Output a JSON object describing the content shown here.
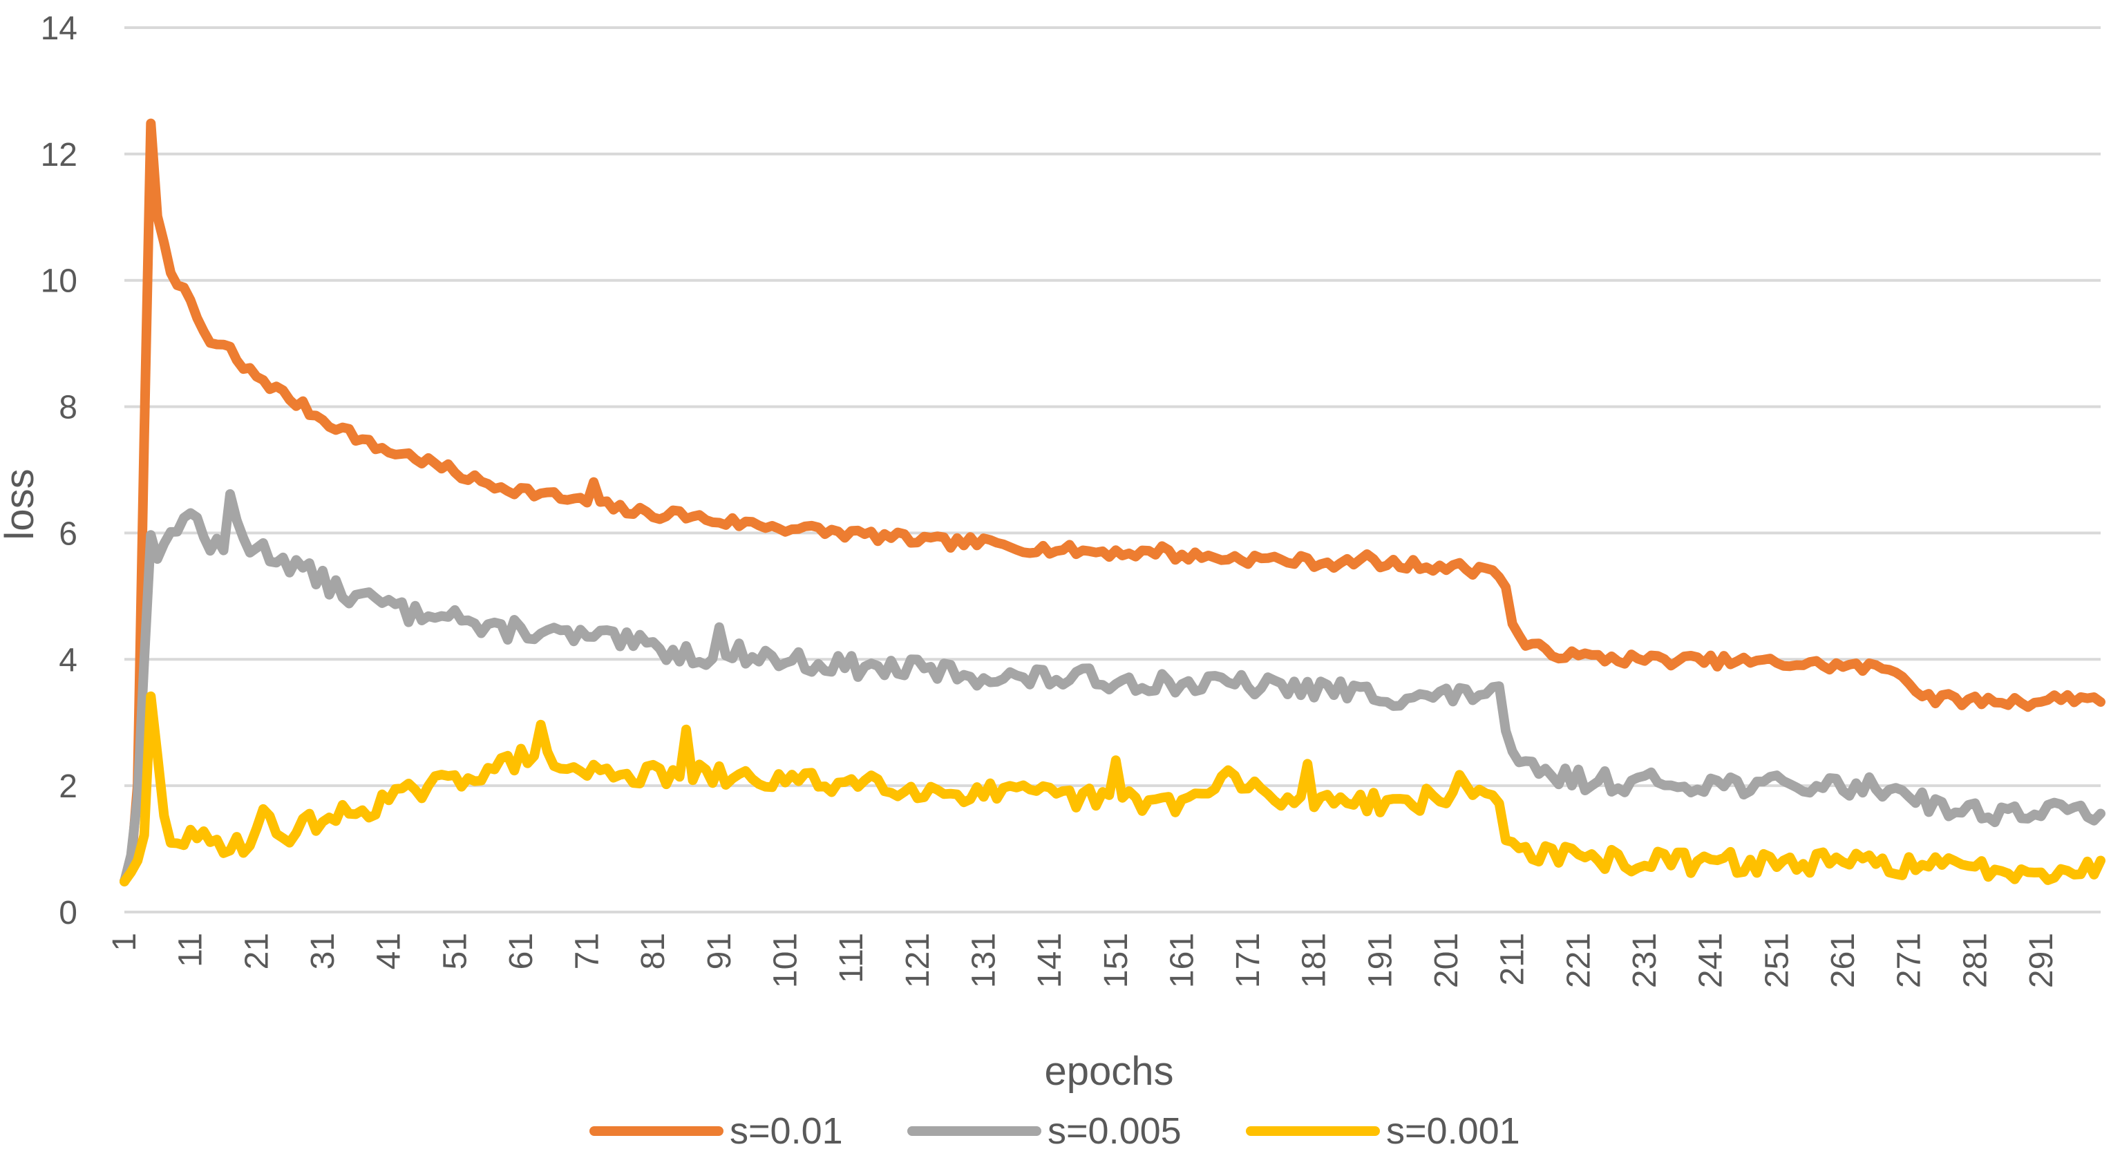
{
  "chart_data": {
    "type": "line",
    "title": "",
    "xlabel": "epochs",
    "ylabel": "loss",
    "ylim": [
      0,
      14
    ],
    "yticks": [
      "0",
      "2",
      "4",
      "6",
      "8",
      "10",
      "12",
      "14"
    ],
    "xticks": [
      "1",
      "11",
      "21",
      "31",
      "41",
      "51",
      "61",
      "71",
      "81",
      "91",
      "101",
      "111",
      "121",
      "131",
      "141",
      "151",
      "161",
      "171",
      "181",
      "191",
      "201",
      "211",
      "221",
      "231",
      "241",
      "251",
      "261",
      "271",
      "281",
      "291"
    ],
    "xlim": [
      1,
      300
    ],
    "grid": true,
    "legend_position": "bottom",
    "series": [
      {
        "name": "s=0.01",
        "color": "#ED7D31",
        "anchors": [
          [
            1,
            0.5
          ],
          [
            2,
            0.7
          ],
          [
            3,
            2.0
          ],
          [
            4,
            7.5
          ],
          [
            5,
            12.5
          ],
          [
            6,
            11.0
          ],
          [
            7,
            10.6
          ],
          [
            8,
            10.2
          ],
          [
            10,
            9.8
          ],
          [
            12,
            9.4
          ],
          [
            14,
            9.0
          ],
          [
            17,
            8.9
          ],
          [
            19,
            8.6
          ],
          [
            21,
            8.5
          ],
          [
            25,
            8.2
          ],
          [
            28,
            8.0
          ],
          [
            31,
            7.8
          ],
          [
            35,
            7.6
          ],
          [
            38,
            7.4
          ],
          [
            41,
            7.3
          ],
          [
            45,
            7.2
          ],
          [
            50,
            7.0
          ],
          [
            55,
            6.8
          ],
          [
            60,
            6.7
          ],
          [
            65,
            6.6
          ],
          [
            70,
            6.5
          ],
          [
            75,
            6.4
          ],
          [
            80,
            6.3
          ],
          [
            85,
            6.3
          ],
          [
            90,
            6.2
          ],
          [
            95,
            6.15
          ],
          [
            100,
            6.1
          ],
          [
            105,
            6.05
          ],
          [
            110,
            6.0
          ],
          [
            115,
            5.95
          ],
          [
            120,
            5.9
          ],
          [
            125,
            5.85
          ],
          [
            130,
            5.85
          ],
          [
            135,
            5.8
          ],
          [
            140,
            5.75
          ],
          [
            145,
            5.72
          ],
          [
            150,
            5.7
          ],
          [
            155,
            5.68
          ],
          [
            160,
            5.65
          ],
          [
            165,
            5.62
          ],
          [
            170,
            5.6
          ],
          [
            175,
            5.58
          ],
          [
            180,
            5.55
          ],
          [
            185,
            5.52
          ],
          [
            190,
            5.5
          ],
          [
            195,
            5.5
          ],
          [
            200,
            5.48
          ],
          [
            203,
            5.45
          ],
          [
            206,
            5.4
          ],
          [
            208,
            5.5
          ],
          [
            210,
            5.1
          ],
          [
            211,
            4.6
          ],
          [
            213,
            4.2
          ],
          [
            216,
            4.15
          ],
          [
            220,
            4.05
          ],
          [
            230,
            4.0
          ],
          [
            240,
            3.98
          ],
          [
            250,
            3.95
          ],
          [
            260,
            3.9
          ],
          [
            268,
            3.85
          ],
          [
            270,
            3.8
          ],
          [
            272,
            3.5
          ],
          [
            275,
            3.38
          ],
          [
            280,
            3.35
          ],
          [
            290,
            3.33
          ],
          [
            295,
            3.4
          ],
          [
            300,
            3.38
          ]
        ],
        "noise": 0.09,
        "seed": 7,
        "spikes": [
          [
            5,
            0
          ],
          [
            72,
            0.35
          ],
          [
            158,
            0.2
          ],
          [
            189,
            0.25
          ]
        ]
      },
      {
        "name": "s=0.005",
        "color": "#A5A5A5",
        "anchors": [
          [
            1,
            0.5
          ],
          [
            2,
            0.9
          ],
          [
            3,
            1.8
          ],
          [
            4,
            4.0
          ],
          [
            5,
            6.0
          ],
          [
            6,
            5.6
          ],
          [
            8,
            6.0
          ],
          [
            10,
            6.3
          ],
          [
            12,
            6.2
          ],
          [
            14,
            5.8
          ],
          [
            16,
            5.7
          ],
          [
            18,
            6.2
          ],
          [
            20,
            5.8
          ],
          [
            25,
            5.6
          ],
          [
            30,
            5.3
          ],
          [
            35,
            5.0
          ],
          [
            40,
            4.9
          ],
          [
            45,
            4.7
          ],
          [
            48,
            4.8
          ],
          [
            50,
            4.8
          ],
          [
            53,
            4.6
          ],
          [
            56,
            4.4
          ],
          [
            60,
            4.5
          ],
          [
            65,
            4.4
          ],
          [
            70,
            4.35
          ],
          [
            75,
            4.3
          ],
          [
            80,
            4.2
          ],
          [
            85,
            4.1
          ],
          [
            90,
            4.05
          ],
          [
            95,
            4.1
          ],
          [
            100,
            4.0
          ],
          [
            105,
            3.95
          ],
          [
            110,
            3.9
          ],
          [
            115,
            3.85
          ],
          [
            120,
            3.85
          ],
          [
            125,
            3.8
          ],
          [
            130,
            3.75
          ],
          [
            135,
            3.7
          ],
          [
            140,
            3.7
          ],
          [
            145,
            3.7
          ],
          [
            150,
            3.68
          ],
          [
            155,
            3.65
          ],
          [
            160,
            3.62
          ],
          [
            165,
            3.6
          ],
          [
            170,
            3.6
          ],
          [
            175,
            3.55
          ],
          [
            180,
            3.55
          ],
          [
            185,
            3.5
          ],
          [
            190,
            3.45
          ],
          [
            195,
            3.4
          ],
          [
            200,
            3.4
          ],
          [
            205,
            3.45
          ],
          [
            208,
            3.55
          ],
          [
            209,
            3.5
          ],
          [
            210,
            2.7
          ],
          [
            212,
            2.3
          ],
          [
            215,
            2.2
          ],
          [
            220,
            2.1
          ],
          [
            230,
            2.05
          ],
          [
            240,
            2.05
          ],
          [
            250,
            2.0
          ],
          [
            260,
            2.0
          ],
          [
            270,
            1.95
          ],
          [
            273,
            1.8
          ],
          [
            276,
            1.65
          ],
          [
            280,
            1.6
          ],
          [
            285,
            1.58
          ],
          [
            290,
            1.58
          ],
          [
            295,
            1.6
          ],
          [
            300,
            1.6
          ]
        ],
        "noise": 0.17,
        "seed": 13,
        "spikes": [
          [
            17,
            0.6
          ],
          [
            91,
            0.35
          ]
        ]
      },
      {
        "name": "s=0.001",
        "color": "#FFC000",
        "anchors": [
          [
            1,
            0.5
          ],
          [
            2,
            0.6
          ],
          [
            3,
            0.8
          ],
          [
            4,
            1.2
          ],
          [
            5,
            3.4
          ],
          [
            6,
            2.5
          ],
          [
            7,
            1.5
          ],
          [
            8,
            1.2
          ],
          [
            10,
            1.15
          ],
          [
            15,
            1.1
          ],
          [
            20,
            1.1
          ],
          [
            22,
            1.5
          ],
          [
            25,
            1.2
          ],
          [
            30,
            1.45
          ],
          [
            35,
            1.55
          ],
          [
            40,
            1.75
          ],
          [
            45,
            1.9
          ],
          [
            50,
            2.05
          ],
          [
            55,
            2.25
          ],
          [
            60,
            2.35
          ],
          [
            63,
            2.6
          ],
          [
            65,
            2.4
          ],
          [
            70,
            2.2
          ],
          [
            75,
            2.25
          ],
          [
            80,
            2.15
          ],
          [
            85,
            2.2
          ],
          [
            90,
            2.15
          ],
          [
            95,
            2.1
          ],
          [
            100,
            2.1
          ],
          [
            105,
            2.05
          ],
          [
            110,
            2.05
          ],
          [
            115,
            2.1
          ],
          [
            120,
            1.95
          ],
          [
            125,
            1.9
          ],
          [
            130,
            1.9
          ],
          [
            135,
            1.85
          ],
          [
            140,
            1.85
          ],
          [
            145,
            1.8
          ],
          [
            150,
            1.8
          ],
          [
            155,
            1.75
          ],
          [
            160,
            1.75
          ],
          [
            165,
            1.85
          ],
          [
            168,
            2.2
          ],
          [
            170,
            2.0
          ],
          [
            175,
            1.8
          ],
          [
            180,
            1.75
          ],
          [
            185,
            1.85
          ],
          [
            190,
            1.75
          ],
          [
            195,
            1.75
          ],
          [
            200,
            1.8
          ],
          [
            203,
            2.0
          ],
          [
            207,
            1.85
          ],
          [
            209,
            1.8
          ],
          [
            210,
            1.2
          ],
          [
            212,
            1.0
          ],
          [
            215,
            0.95
          ],
          [
            220,
            0.85
          ],
          [
            230,
            0.8
          ],
          [
            240,
            0.78
          ],
          [
            250,
            0.78
          ],
          [
            260,
            0.77
          ],
          [
            270,
            0.76
          ],
          [
            273,
            0.72
          ],
          [
            280,
            0.7
          ],
          [
            290,
            0.68
          ],
          [
            300,
            0.68
          ]
        ],
        "noise": 0.18,
        "seed": 29,
        "spikes": [
          [
            64,
            0.3
          ],
          [
            86,
            0.55
          ],
          [
            151,
            0.55
          ],
          [
            180,
            0.5
          ]
        ]
      }
    ]
  }
}
